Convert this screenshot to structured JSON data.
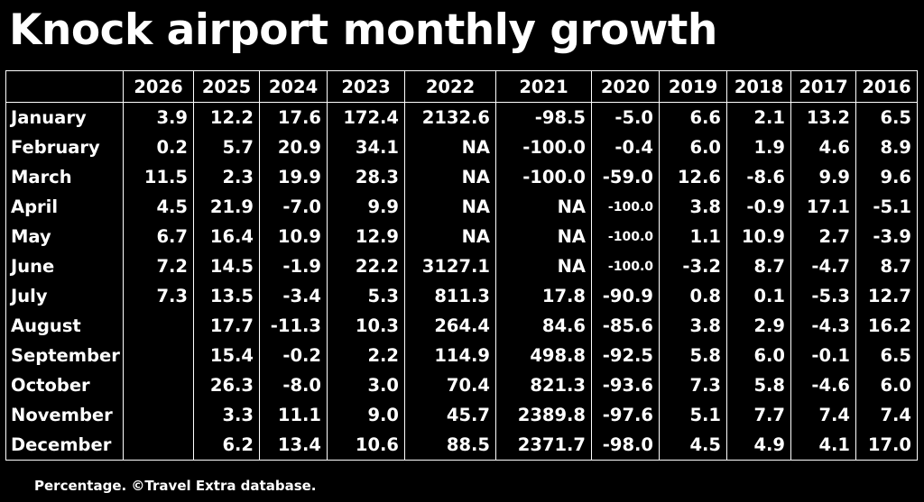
{
  "title": "Knock airport monthly growth",
  "footnote": "Percentage. ©Travel Extra database.",
  "chart_data": {
    "type": "table",
    "title": "Knock airport monthly growth",
    "columns": [
      "2026",
      "2025",
      "2024",
      "2023",
      "2022",
      "2021",
      "2020",
      "2019",
      "2018",
      "2017",
      "2016"
    ],
    "rows": [
      {
        "month": "January",
        "values": [
          "3.9",
          "12.2",
          "17.6",
          "172.4",
          "2132.6",
          "-98.5",
          "-5.0",
          "6.6",
          "2.1",
          "13.2",
          "6.5"
        ]
      },
      {
        "month": "February",
        "values": [
          "0.2",
          "5.7",
          "20.9",
          "34.1",
          "NA",
          "-100.0",
          "-0.4",
          "6.0",
          "1.9",
          "4.6",
          "8.9"
        ]
      },
      {
        "month": "March",
        "values": [
          "11.5",
          "2.3",
          "19.9",
          "28.3",
          "NA",
          "-100.0",
          "-59.0",
          "12.6",
          "-8.6",
          "9.9",
          "9.6"
        ]
      },
      {
        "month": "April",
        "values": [
          "4.5",
          "21.9",
          "-7.0",
          "9.9",
          "NA",
          "NA",
          "-100.0",
          "3.8",
          "-0.9",
          "17.1",
          "-5.1"
        ]
      },
      {
        "month": "May",
        "values": [
          "6.7",
          "16.4",
          "10.9",
          "12.9",
          "NA",
          "NA",
          "-100.0",
          "1.1",
          "10.9",
          "2.7",
          "-3.9"
        ]
      },
      {
        "month": "June",
        "values": [
          "7.2",
          "14.5",
          "-1.9",
          "22.2",
          "3127.1",
          "NA",
          "-100.0",
          "-3.2",
          "8.7",
          "-4.7",
          "8.7"
        ]
      },
      {
        "month": "July",
        "values": [
          "7.3",
          "13.5",
          "-3.4",
          "5.3",
          "811.3",
          "17.8",
          "-90.9",
          "0.8",
          "0.1",
          "-5.3",
          "12.7"
        ]
      },
      {
        "month": "August",
        "values": [
          "",
          "17.7",
          "-11.3",
          "10.3",
          "264.4",
          "84.6",
          "-85.6",
          "3.8",
          "2.9",
          "-4.3",
          "16.2"
        ]
      },
      {
        "month": "September",
        "values": [
          "",
          "15.4",
          "-0.2",
          "2.2",
          "114.9",
          "498.8",
          "-92.5",
          "5.8",
          "6.0",
          "-0.1",
          "6.5"
        ]
      },
      {
        "month": "October",
        "values": [
          "",
          "26.3",
          "-8.0",
          "3.0",
          "70.4",
          "821.3",
          "-93.6",
          "7.3",
          "5.8",
          "-4.6",
          "6.0"
        ]
      },
      {
        "month": "November",
        "values": [
          "",
          "3.3",
          "11.1",
          "9.0",
          "45.7",
          "2389.8",
          "-97.6",
          "5.1",
          "7.7",
          "7.4",
          "7.4"
        ]
      },
      {
        "month": "December",
        "values": [
          "",
          "6.2",
          "13.4",
          "10.6",
          "88.5",
          "2371.7",
          "-98.0",
          "4.5",
          "4.9",
          "4.1",
          "17.0"
        ]
      }
    ],
    "small_cells": [
      [
        3,
        6
      ],
      [
        4,
        6
      ],
      [
        5,
        6
      ]
    ]
  }
}
